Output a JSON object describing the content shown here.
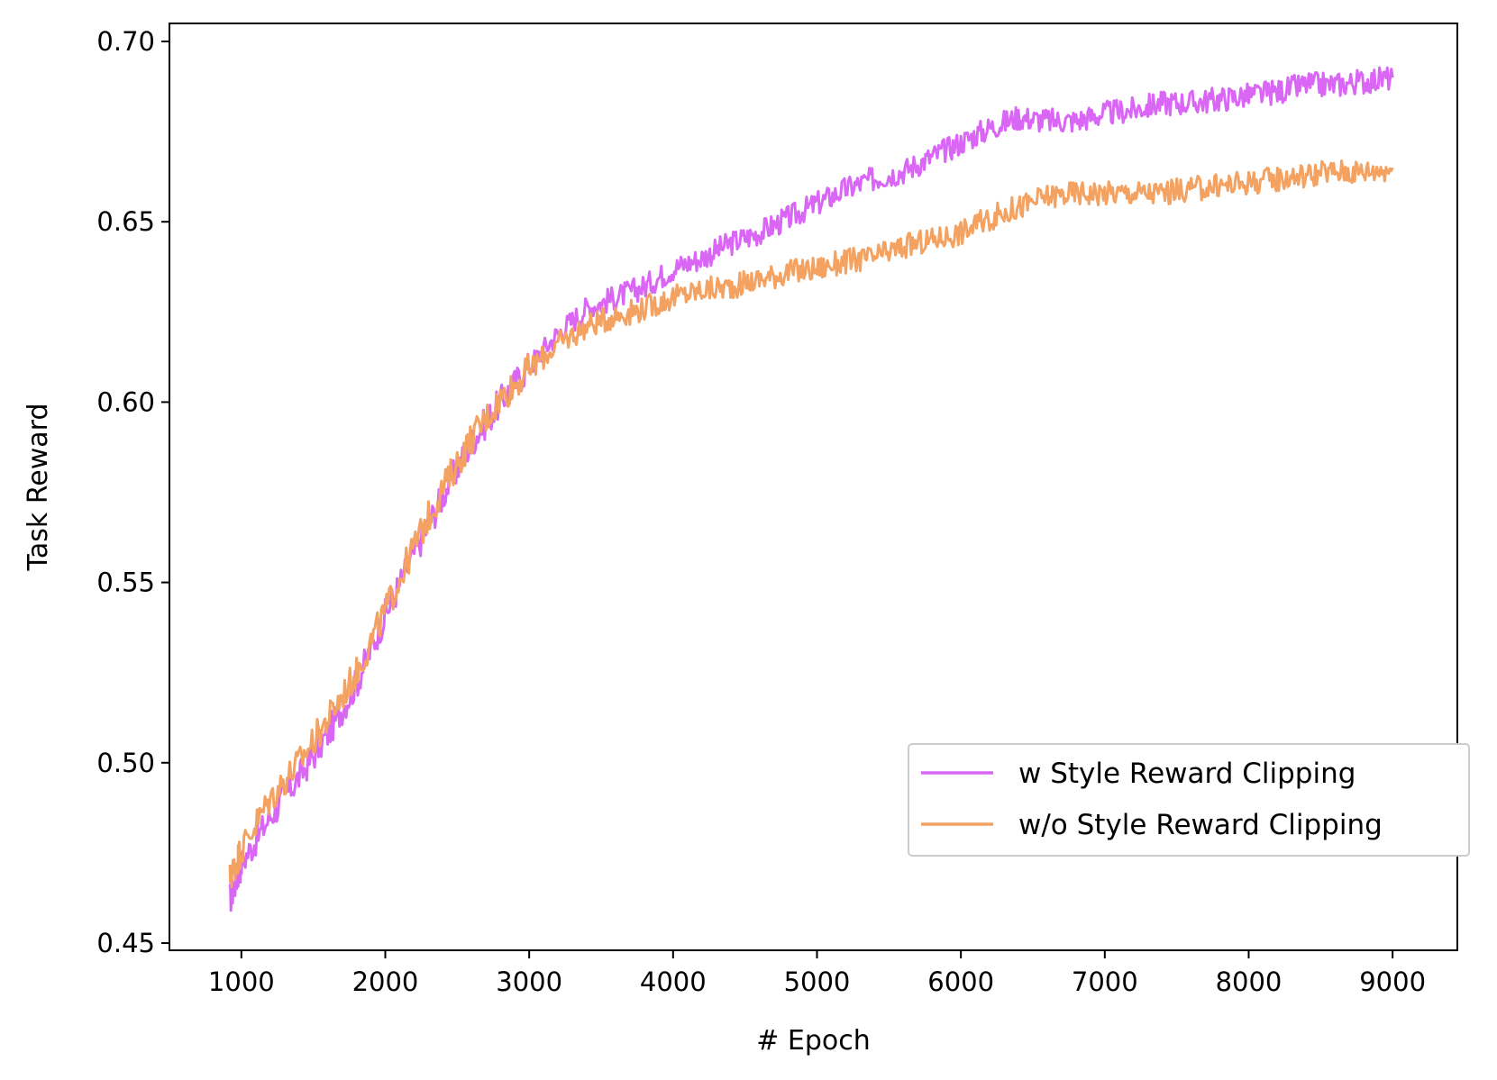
{
  "chart_data": {
    "type": "line",
    "title": "",
    "xlabel": "# Epoch",
    "ylabel": "Task Reward",
    "xlim": [
      500,
      9450
    ],
    "ylim": [
      0.448,
      0.705
    ],
    "xticks": [
      1000,
      2000,
      3000,
      4000,
      5000,
      6000,
      7000,
      8000,
      9000
    ],
    "yticks": [
      0.45,
      0.5,
      0.55,
      0.6,
      0.65,
      0.7
    ],
    "xtick_labels": [
      "1000",
      "2000",
      "3000",
      "4000",
      "5000",
      "6000",
      "7000",
      "8000",
      "9000"
    ],
    "ytick_labels": [
      "0.45",
      "0.50",
      "0.55",
      "0.60",
      "0.65",
      "0.70"
    ],
    "grid": false,
    "legend": {
      "position": "lower-right"
    },
    "series": [
      {
        "name": "w Style Reward Clipping",
        "color": "#d966f5",
        "x": [
          920,
          1000,
          1200,
          1400,
          1600,
          1800,
          2000,
          2200,
          2400,
          2600,
          2800,
          3000,
          3200,
          3400,
          3600,
          3800,
          4000,
          4200,
          4400,
          4600,
          4800,
          5000,
          5200,
          5400,
          5600,
          5800,
          6000,
          6200,
          6400,
          6600,
          6800,
          7000,
          7200,
          7400,
          7600,
          7800,
          8000,
          8200,
          8400,
          8600,
          8800,
          9000
        ],
        "y": [
          0.462,
          0.472,
          0.485,
          0.496,
          0.508,
          0.522,
          0.541,
          0.558,
          0.574,
          0.589,
          0.6,
          0.61,
          0.619,
          0.626,
          0.629,
          0.632,
          0.637,
          0.64,
          0.644,
          0.647,
          0.651,
          0.655,
          0.659,
          0.662,
          0.664,
          0.668,
          0.672,
          0.676,
          0.679,
          0.678,
          0.678,
          0.68,
          0.681,
          0.683,
          0.683,
          0.684,
          0.685,
          0.686,
          0.688,
          0.688,
          0.689,
          0.69
        ]
      },
      {
        "name": "w/o Style Reward Clipping",
        "color": "#f4a261",
        "x": [
          920,
          1000,
          1200,
          1400,
          1600,
          1800,
          2000,
          2200,
          2400,
          2600,
          2800,
          3000,
          3200,
          3400,
          3600,
          3800,
          4000,
          4200,
          4400,
          4600,
          4800,
          5000,
          5200,
          5400,
          5600,
          5800,
          6000,
          6200,
          6400,
          6600,
          6800,
          7000,
          7200,
          7400,
          7600,
          7800,
          8000,
          8200,
          8400,
          8600,
          8800,
          9000
        ],
        "y": [
          0.468,
          0.476,
          0.49,
          0.5,
          0.512,
          0.525,
          0.542,
          0.56,
          0.576,
          0.59,
          0.601,
          0.609,
          0.616,
          0.621,
          0.624,
          0.626,
          0.629,
          0.631,
          0.632,
          0.634,
          0.636,
          0.637,
          0.639,
          0.64,
          0.643,
          0.645,
          0.647,
          0.651,
          0.654,
          0.657,
          0.658,
          0.658,
          0.658,
          0.658,
          0.659,
          0.66,
          0.661,
          0.662,
          0.663,
          0.664,
          0.664,
          0.665
        ]
      }
    ]
  }
}
